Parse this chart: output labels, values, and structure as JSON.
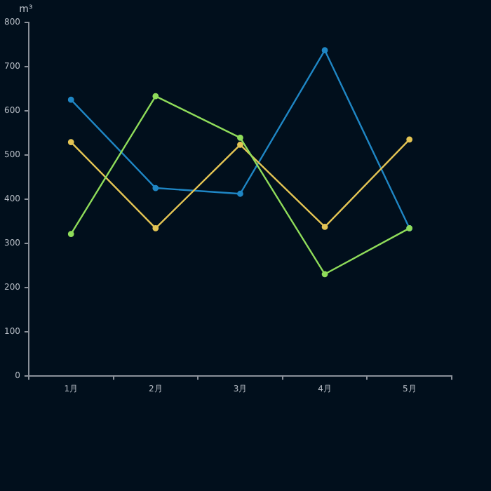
{
  "chart_data": {
    "type": "line",
    "ylabel": "m³",
    "categories": [
      "1月",
      "2月",
      "3月",
      "4月",
      "5月"
    ],
    "series": [
      {
        "color": "#1f86c4",
        "values": [
          625,
          425,
          412,
          737,
          334
        ]
      },
      {
        "color": "#e3c454",
        "values": [
          529,
          334,
          523,
          337,
          535
        ]
      },
      {
        "color": "#8fdc5a",
        "values": [
          321,
          633,
          539,
          230,
          334
        ]
      }
    ],
    "ylim": [
      0,
      800
    ],
    "yticks": [
      0,
      100,
      200,
      300,
      400,
      500,
      600,
      700,
      800
    ],
    "grid": false,
    "legend": false,
    "marker": "circle",
    "line_style": "solid"
  }
}
